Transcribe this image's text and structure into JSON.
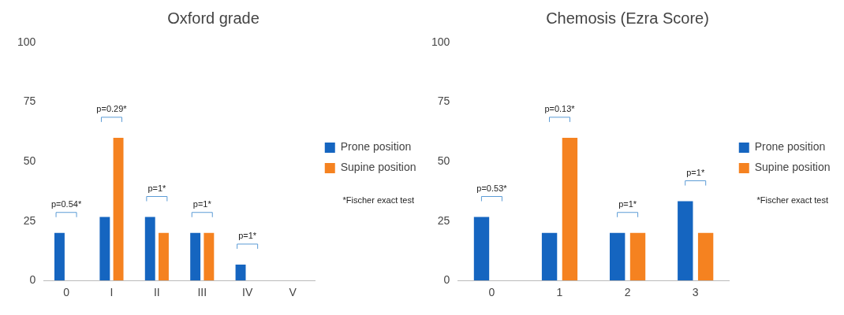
{
  "chart_data": [
    {
      "type": "bar",
      "title": "Oxford grade",
      "categories": [
        "0",
        "I",
        "II",
        "III",
        "IV",
        "V"
      ],
      "series": [
        {
          "name": "Prone position",
          "color": "#1565c0",
          "values": [
            20,
            26.7,
            26.7,
            20,
            6.7,
            0
          ]
        },
        {
          "name": "Supine position",
          "color": "#f58220",
          "values": [
            0,
            60,
            20,
            20,
            0,
            0
          ]
        }
      ],
      "ylim": [
        0,
        100
      ],
      "yticks": [
        0,
        25,
        50,
        75,
        100
      ],
      "grid": false,
      "legend": "right",
      "annotations": [
        "p=0.54*",
        "p=0.29*",
        "p=1*",
        "p=1*",
        "p=1*",
        "*Fischer exact test"
      ]
    },
    {
      "type": "bar",
      "title": "Chemosis (Ezra Score)",
      "categories": [
        "0",
        "1",
        "2",
        "3"
      ],
      "series": [
        {
          "name": "Prone position",
          "color": "#1565c0",
          "values": [
            26.7,
            20,
            20,
            33.3
          ]
        },
        {
          "name": "Supine position",
          "color": "#f58220",
          "values": [
            0,
            60,
            20,
            20
          ]
        }
      ],
      "ylim": [
        0,
        100
      ],
      "yticks": [
        0,
        25,
        50,
        75,
        100
      ],
      "grid": false,
      "legend": "right",
      "annotations": [
        "p=0.53*",
        "p=0.13*",
        "p=1*",
        "p=1*",
        "*Fischer exact test"
      ]
    }
  ]
}
